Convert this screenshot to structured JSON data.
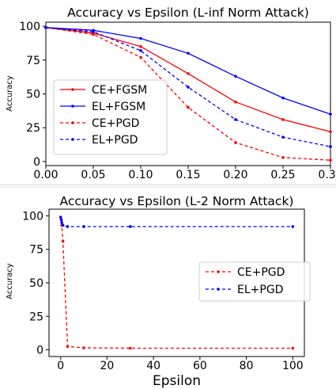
{
  "chart_data": [
    {
      "type": "line",
      "title": "Accuracy vs Epsilon (L-inf Norm Attack)",
      "xlabel": "",
      "ylabel": "Accuracy",
      "xlim": [
        0.0,
        0.3
      ],
      "ylim": [
        -3,
        103
      ],
      "grid": false,
      "legend_position": "center-left",
      "x_ticks": [
        "0.00",
        "0.05",
        "0.10",
        "0.15",
        "0.20",
        "0.25",
        "0.30"
      ],
      "y_ticks": [
        "0",
        "25",
        "50",
        "75",
        "100"
      ],
      "x": [
        0.0,
        0.05,
        0.1,
        0.15,
        0.2,
        0.25,
        0.3
      ],
      "series": [
        {
          "name": "CE+FGSM",
          "color": "#ff0000",
          "style": "solid",
          "values": [
            99,
            95,
            85,
            65,
            44,
            31,
            22
          ]
        },
        {
          "name": "EL+FGSM",
          "color": "#0000ff",
          "style": "solid",
          "values": [
            99,
            97,
            91,
            80,
            63,
            47,
            35
          ]
        },
        {
          "name": "CE+PGD",
          "color": "#ff0000",
          "style": "dashed",
          "values": [
            99,
            94,
            77,
            40,
            14,
            3,
            1
          ]
        },
        {
          "name": "EL+PGD",
          "color": "#0000ff",
          "style": "dashed",
          "values": [
            99,
            96,
            82,
            55,
            31,
            18,
            11
          ]
        }
      ]
    },
    {
      "type": "line",
      "title": "Accuracy vs Epsilon (L-2 Norm Attack)",
      "xlabel": "Epsilon",
      "ylabel": "Accuracy",
      "xlim": [
        -5,
        105
      ],
      "ylim": [
        -5,
        105
      ],
      "grid": false,
      "legend_position": "center-right",
      "x_ticks": [
        "0",
        "20",
        "40",
        "60",
        "80",
        "100"
      ],
      "y_ticks": [
        "0",
        "25",
        "50",
        "75",
        "100"
      ],
      "series": [
        {
          "name": "CE+PGD",
          "color": "#ff0000",
          "style": "dashed",
          "x": [
            0,
            0.3,
            0.5,
            1,
            3,
            10,
            30,
            100
          ],
          "values": [
            99,
            97,
            93,
            81,
            2.5,
            1.5,
            1.2,
            1.2
          ]
        },
        {
          "name": "EL+PGD",
          "color": "#0000ff",
          "style": "dashed",
          "x": [
            0,
            0.3,
            0.5,
            1,
            3,
            10,
            30,
            100
          ],
          "values": [
            99,
            97,
            95,
            93,
            92,
            92,
            92,
            92
          ]
        }
      ]
    }
  ]
}
